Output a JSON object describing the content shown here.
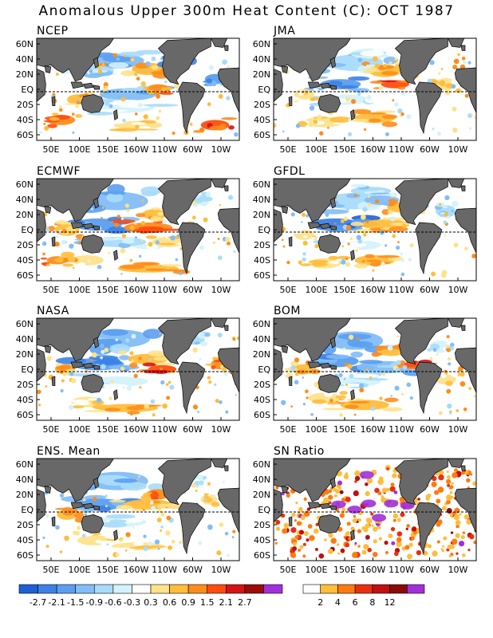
{
  "title": "Anomalous Upper 300m Heat Content (C): OCT 1987",
  "panels": [
    {
      "name": "NCEP"
    },
    {
      "name": "JMA"
    },
    {
      "name": "ECMWF"
    },
    {
      "name": "GFDL"
    },
    {
      "name": "NASA"
    },
    {
      "name": "BOM"
    },
    {
      "name": "ENS. Mean"
    },
    {
      "name": "SN Ratio"
    }
  ],
  "lat_labels": [
    "60N",
    "40N",
    "20N",
    "EQ",
    "20S",
    "40S",
    "60S"
  ],
  "lon_labels": [
    "50E",
    "100E",
    "150E",
    "160W",
    "110W",
    "60W",
    "10W"
  ],
  "anomaly_scale": {
    "colors": [
      "#1e5fd6",
      "#3c82e6",
      "#5a9ef0",
      "#82bdf7",
      "#a8dbfa",
      "#d4f2fc",
      "#ffffff",
      "#ffe28a",
      "#ffbd3a",
      "#ff8c1a",
      "#ff4d10",
      "#d41414",
      "#9c0a0a",
      "#a030d8"
    ],
    "tick_labels": [
      "-2.7",
      "-2.1",
      "-1.5",
      "-0.9",
      "-0.6",
      "-0.3",
      "0.3",
      "0.6",
      "0.9",
      "1.5",
      "2.1",
      "2.7"
    ]
  },
  "sn_scale": {
    "colors": [
      "#ffffff",
      "#ffbd3a",
      "#ff7a10",
      "#e83010",
      "#c01010",
      "#8a0a0a",
      "#a030d8"
    ],
    "tick_labels": [
      "2",
      "4",
      "6",
      "8",
      "12"
    ]
  },
  "colors": {
    "land": "#686868",
    "ocean": "#ffffff"
  }
}
